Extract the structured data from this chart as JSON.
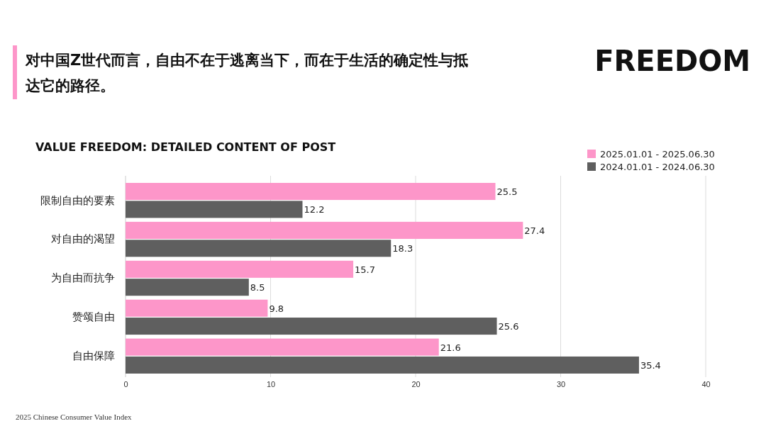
{
  "chart_data": {
    "type": "bar",
    "orientation": "horizontal",
    "title": "对中国Z世代而言，自由不在于逃离当下，而在于生活的确定性与抵达它的路径。",
    "subtitle": "VALUE FREEDOM: DETAILED CONTENT OF POST",
    "annotations": [
      "FREEDOM",
      "2025 Chinese Consumer Value Index"
    ],
    "categories": [
      "限制自由的要素",
      "对自由的渴望",
      "为自由而抗争",
      "赞颂自由",
      "自由保障"
    ],
    "series": [
      {
        "name": "2025.01.01 - 2025.06.30",
        "color": "#fd96c9",
        "values": [
          25.5,
          27.4,
          15.7,
          9.8,
          21.6
        ]
      },
      {
        "name": "2024.01.01 - 2024.06.30",
        "color": "#5f5f5f",
        "values": [
          12.2,
          18.3,
          8.5,
          25.6,
          35.4
        ]
      }
    ],
    "xlim": [
      0,
      40
    ],
    "xticks": [
      0,
      10,
      20,
      30,
      40
    ],
    "grid": "x",
    "legend": "top right",
    "data_labels": true
  }
}
